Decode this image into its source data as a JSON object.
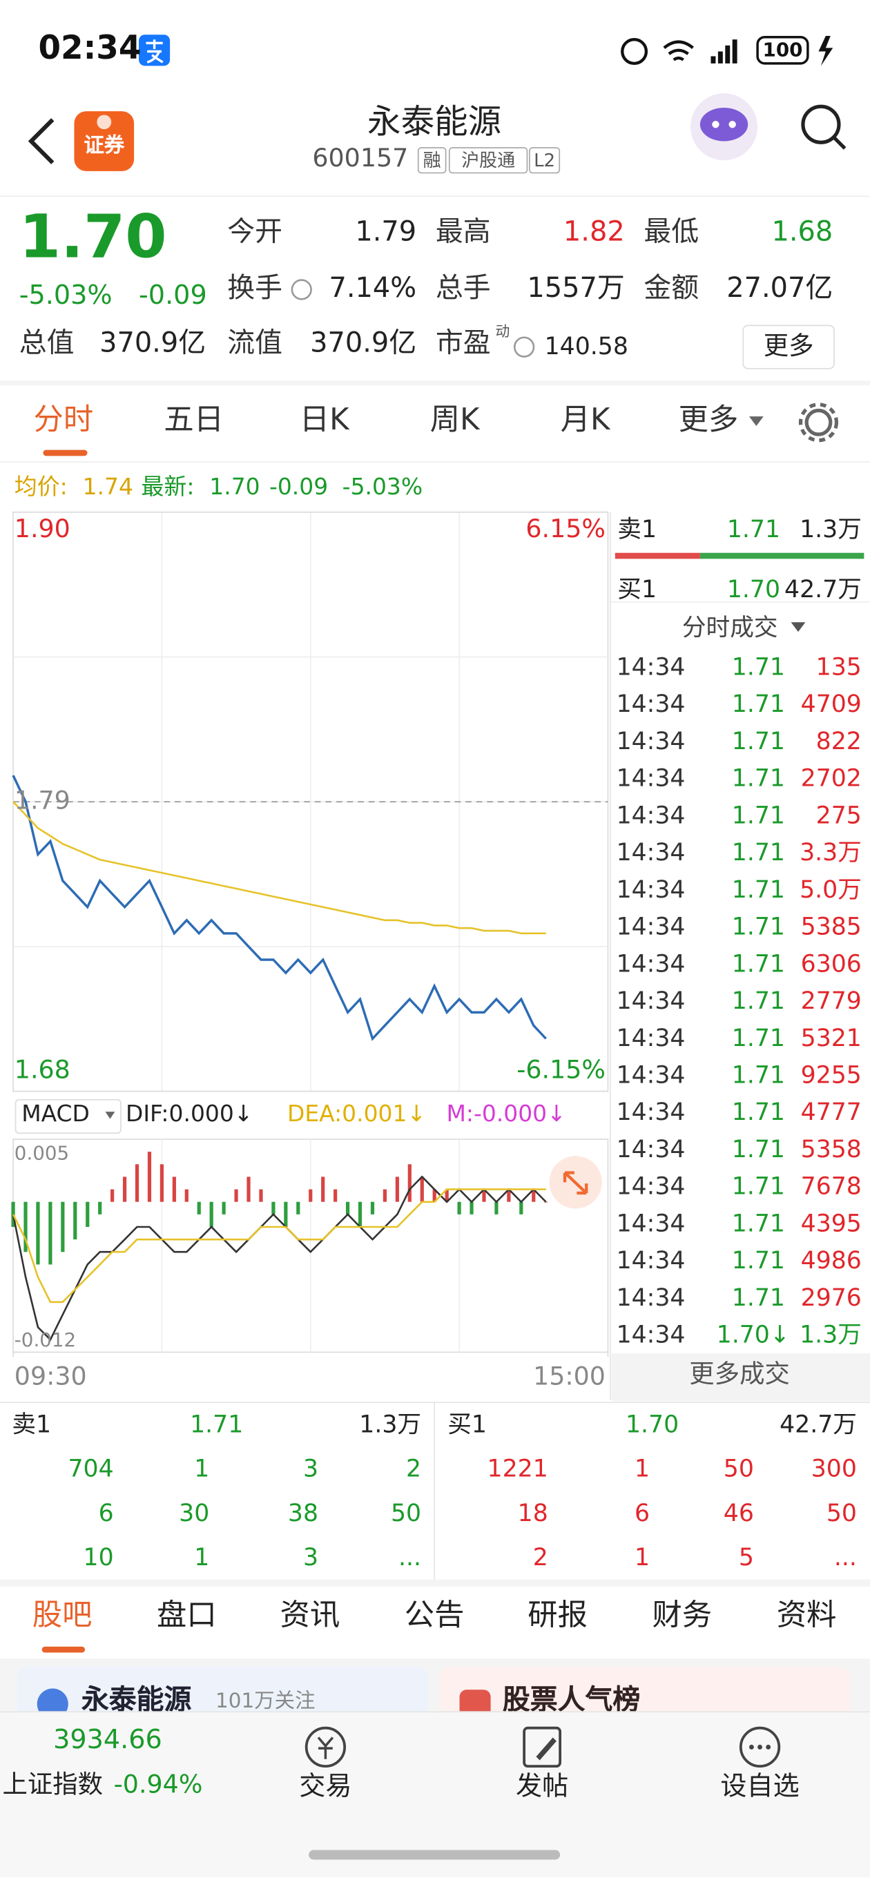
{
  "status": {
    "time": "02:34",
    "battery": "100"
  },
  "header": {
    "logo": "证券",
    "title": "永泰能源",
    "code": "600157",
    "tags": [
      "融",
      "沪股通",
      "L2"
    ]
  },
  "quote": {
    "price": "1.70",
    "change_pct": "-5.03%",
    "change": "-0.09",
    "fields": [
      {
        "label": "今开",
        "value": "1.79"
      },
      {
        "label": "最高",
        "value": "1.82"
      },
      {
        "label": "最低",
        "value": "1.68"
      },
      {
        "label": "换手",
        "value": "7.14%"
      },
      {
        "label": "总手",
        "value": "1557万"
      },
      {
        "label": "金额",
        "value": "27.07亿"
      },
      {
        "label": "总值",
        "value": "370.9亿"
      },
      {
        "label": "流值",
        "value": "370.9亿"
      },
      {
        "label": "市盈",
        "value": "140.58",
        "sup": "动"
      }
    ],
    "more": "更多"
  },
  "tabs": [
    "分时",
    "五日",
    "日K",
    "周K",
    "月K",
    "更多"
  ],
  "chart_data": [
    {
      "type": "line",
      "avg_label": "均价:",
      "avg_value": "1.74",
      "latest_label": "最新:",
      "latest_value": "1.70",
      "latest_change": "-0.09",
      "latest_pct": "-5.03%",
      "x": [
        0,
        5,
        10,
        15,
        20,
        25,
        30,
        35,
        40,
        45,
        50,
        55,
        60,
        65,
        70,
        75,
        80,
        85,
        90,
        95,
        100,
        105,
        110,
        115,
        120,
        125,
        130,
        135,
        140,
        145,
        150,
        155,
        160,
        165,
        170,
        175,
        180,
        185,
        190,
        195,
        200,
        205,
        210,
        215
      ],
      "xlim": [
        0,
        240
      ],
      "xticks": [
        {
          "value": 0,
          "label": "09:30"
        },
        {
          "value": 240,
          "label": "15:00"
        }
      ],
      "ylim": [
        1.68,
        1.9
      ],
      "yticks": [
        {
          "value": 1.68,
          "label": "1.68"
        },
        {
          "value": 1.79,
          "label": "1.79"
        },
        {
          "value": 1.9,
          "label": "1.90"
        }
      ],
      "y2lim": [
        -6.15,
        6.15
      ],
      "y2ticks": [
        {
          "value": -6.15,
          "label": "-6.15%"
        },
        {
          "value": 6.15,
          "label": "6.15%"
        }
      ],
      "series": [
        {
          "color": "#2d6cb5",
          "values": [
            1.8,
            1.79,
            1.77,
            1.775,
            1.76,
            1.755,
            1.75,
            1.76,
            1.755,
            1.75,
            1.755,
            1.76,
            1.75,
            1.74,
            1.745,
            1.74,
            1.745,
            1.74,
            1.74,
            1.735,
            1.73,
            1.73,
            1.725,
            1.73,
            1.725,
            1.73,
            1.72,
            1.71,
            1.715,
            1.7,
            1.705,
            1.71,
            1.715,
            1.71,
            1.72,
            1.71,
            1.715,
            1.71,
            1.71,
            1.715,
            1.71,
            1.715,
            1.705,
            1.7
          ]
        },
        {
          "color": "#e6c229",
          "values": [
            1.79,
            1.785,
            1.78,
            1.777,
            1.774,
            1.772,
            1.77,
            1.768,
            1.767,
            1.766,
            1.765,
            1.764,
            1.763,
            1.762,
            1.761,
            1.76,
            1.759,
            1.758,
            1.757,
            1.756,
            1.755,
            1.754,
            1.753,
            1.752,
            1.751,
            1.75,
            1.749,
            1.748,
            1.747,
            1.746,
            1.745,
            1.745,
            1.744,
            1.744,
            1.743,
            1.743,
            1.742,
            1.742,
            1.741,
            1.741,
            1.741,
            1.74,
            1.74,
            1.74
          ]
        }
      ]
    },
    {
      "type": "macd",
      "legend": [
        "MACD",
        "DIF:0.000↓",
        "DEA:0.001↓",
        "M:-0.000↓"
      ],
      "x": [
        0,
        5,
        10,
        15,
        20,
        25,
        30,
        35,
        40,
        45,
        50,
        55,
        60,
        65,
        70,
        75,
        80,
        85,
        90,
        95,
        100,
        105,
        110,
        115,
        120,
        125,
        130,
        135,
        140,
        145,
        150,
        155,
        160,
        165,
        170,
        175,
        180,
        185,
        190,
        195,
        200,
        205,
        210,
        215
      ],
      "xlim": [
        0,
        240
      ],
      "ylim": [
        -0.012,
        0.005
      ],
      "yticks": [
        {
          "value": -0.012,
          "label": "-0.012"
        },
        {
          "value": 0.005,
          "label": "0.005"
        }
      ],
      "series": [
        {
          "type": "line",
          "color": "#333333",
          "values": [
            -0.001,
            -0.006,
            -0.01,
            -0.011,
            -0.009,
            -0.007,
            -0.005,
            -0.004,
            -0.004,
            -0.003,
            -0.002,
            -0.002,
            -0.003,
            -0.004,
            -0.004,
            -0.003,
            -0.002,
            -0.003,
            -0.004,
            -0.003,
            -0.002,
            -0.001,
            -0.002,
            -0.003,
            -0.004,
            -0.003,
            -0.002,
            -0.001,
            -0.002,
            -0.003,
            -0.002,
            -0.001,
            0.001,
            0.002,
            0.001,
            0,
            0.001,
            0,
            0.001,
            0,
            0.001,
            0,
            0.001,
            0
          ]
        },
        {
          "type": "line",
          "color": "#e6c229",
          "values": [
            -0.001,
            -0.003,
            -0.006,
            -0.008,
            -0.008,
            -0.007,
            -0.006,
            -0.005,
            -0.004,
            -0.004,
            -0.003,
            -0.003,
            -0.003,
            -0.003,
            -0.003,
            -0.003,
            -0.003,
            -0.003,
            -0.003,
            -0.003,
            -0.002,
            -0.002,
            -0.002,
            -0.003,
            -0.003,
            -0.003,
            -0.002,
            -0.002,
            -0.002,
            -0.002,
            -0.002,
            -0.002,
            -0.001,
            0,
            0,
            0.001,
            0.001,
            0.001,
            0.001,
            0.001,
            0.001,
            0.001,
            0.001,
            0.001
          ]
        },
        {
          "type": "bar",
          "up_color": "#d94444",
          "down_color": "#2e9e3e",
          "values": [
            -0.002,
            -0.004,
            -0.005,
            -0.005,
            -0.004,
            -0.003,
            -0.002,
            -0.001,
            0.001,
            0.002,
            0.003,
            0.004,
            0.003,
            0.002,
            0.001,
            -0.001,
            -0.002,
            -0.001,
            0.001,
            0.002,
            0.001,
            -0.001,
            -0.002,
            -0.001,
            0.001,
            0.002,
            0.001,
            -0.001,
            -0.002,
            -0.001,
            0.001,
            0.002,
            0.003,
            0.002,
            0.001,
            0.001,
            -0.001,
            -0.001,
            0.001,
            -0.001,
            0.001,
            -0.001,
            0.001,
            0
          ]
        }
      ]
    }
  ],
  "order_panel": {
    "ask": {
      "label": "卖1",
      "price": "1.71",
      "volume": "1.3万"
    },
    "bid": {
      "label": "买1",
      "price": "1.70",
      "volume": "42.7万"
    },
    "trades_title": "分时成交",
    "trades": [
      [
        "14:34",
        "1.71",
        "135"
      ],
      [
        "14:34",
        "1.71",
        "4709"
      ],
      [
        "14:34",
        "1.71",
        "822"
      ],
      [
        "14:34",
        "1.71",
        "2702"
      ],
      [
        "14:34",
        "1.71",
        "275"
      ],
      [
        "14:34",
        "1.71",
        "3.3万"
      ],
      [
        "14:34",
        "1.71",
        "5.0万"
      ],
      [
        "14:34",
        "1.71",
        "5385"
      ],
      [
        "14:34",
        "1.71",
        "6306"
      ],
      [
        "14:34",
        "1.71",
        "2779"
      ],
      [
        "14:34",
        "1.71",
        "5321"
      ],
      [
        "14:34",
        "1.71",
        "9255"
      ],
      [
        "14:34",
        "1.71",
        "4777"
      ],
      [
        "14:34",
        "1.71",
        "5358"
      ],
      [
        "14:34",
        "1.71",
        "7678"
      ],
      [
        "14:34",
        "1.71",
        "4395"
      ],
      [
        "14:34",
        "1.71",
        "4986"
      ],
      [
        "14:34",
        "1.71",
        "2976"
      ],
      [
        "14:34",
        "1.70↓",
        "1.3万"
      ]
    ],
    "more": "更多成交"
  },
  "book": {
    "ask": {
      "label": "卖1",
      "price": "1.71",
      "volume": "1.3万",
      "rows": [
        [
          "704",
          "1",
          "3",
          "2"
        ],
        [
          "6",
          "30",
          "38",
          "50"
        ],
        [
          "10",
          "1",
          "3",
          "..."
        ]
      ]
    },
    "bid": {
      "label": "买1",
      "price": "1.70",
      "volume": "42.7万",
      "rows": [
        [
          "1221",
          "1",
          "50",
          "300"
        ],
        [
          "18",
          "6",
          "46",
          "50"
        ],
        [
          "2",
          "1",
          "5",
          "..."
        ]
      ]
    }
  },
  "bottom_tabs": [
    "股吧",
    "盘口",
    "资讯",
    "公告",
    "研报",
    "财务",
    "资料"
  ],
  "cards": [
    {
      "title": "永泰能源",
      "sub": "101万关注"
    },
    {
      "title": "股票人气榜"
    }
  ],
  "index": {
    "value": "3934.66",
    "name": "上证指数",
    "change": "-0.94%"
  },
  "actions": [
    "交易",
    "发帖",
    "设自选"
  ]
}
